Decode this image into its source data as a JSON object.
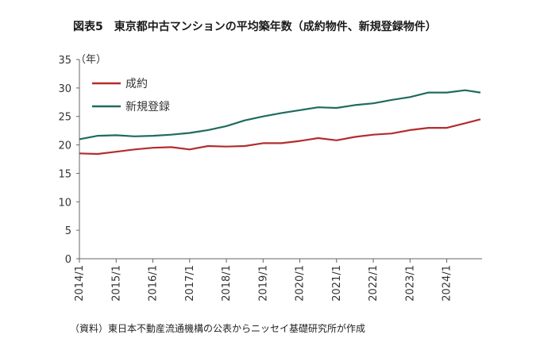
{
  "chart_data": {
    "type": "line",
    "title": "図表5　東京都中古マンションの平均築年数（成約物件、新規登録物件）",
    "ylabel": "（年）",
    "xlabel": "",
    "ylim": [
      0,
      35
    ],
    "y_ticks": [
      "0",
      "5",
      "10",
      "15",
      "20",
      "25",
      "30",
      "35"
    ],
    "x_tick_labels": [
      "2014/1",
      "2015/1",
      "2016/1",
      "2017/1",
      "2018/1",
      "2019/1",
      "2020/1",
      "2021/1",
      "2022/1",
      "2023/1",
      "2024/1"
    ],
    "grid": false,
    "legend_position": "top-left",
    "source": "（資料）東日本不動産流通機構の公表からニッセイ基礎研究所が作成",
    "series": [
      {
        "name": "成約",
        "color": "#b22d2d",
        "points": [
          [
            "2014/1",
            18.5
          ],
          [
            "2014/7",
            18.4
          ],
          [
            "2015/1",
            18.8
          ],
          [
            "2015/7",
            19.2
          ],
          [
            "2016/1",
            19.5
          ],
          [
            "2016/7",
            19.6
          ],
          [
            "2017/1",
            19.2
          ],
          [
            "2017/7",
            19.8
          ],
          [
            "2018/1",
            19.7
          ],
          [
            "2018/7",
            19.8
          ],
          [
            "2019/1",
            20.3
          ],
          [
            "2019/7",
            20.3
          ],
          [
            "2020/1",
            20.7
          ],
          [
            "2020/7",
            21.2
          ],
          [
            "2021/1",
            20.8
          ],
          [
            "2021/7",
            21.4
          ],
          [
            "2022/1",
            21.8
          ],
          [
            "2022/7",
            22.0
          ],
          [
            "2023/1",
            22.6
          ],
          [
            "2023/7",
            23.0
          ],
          [
            "2024/1",
            23.0
          ],
          [
            "2024/7",
            23.8
          ],
          [
            "2024/12",
            24.5
          ]
        ]
      },
      {
        "name": "新規登録",
        "color": "#1f6b5e",
        "points": [
          [
            "2014/1",
            21.0
          ],
          [
            "2014/7",
            21.6
          ],
          [
            "2015/1",
            21.7
          ],
          [
            "2015/7",
            21.5
          ],
          [
            "2016/1",
            21.6
          ],
          [
            "2016/7",
            21.8
          ],
          [
            "2017/1",
            22.1
          ],
          [
            "2017/7",
            22.6
          ],
          [
            "2018/1",
            23.3
          ],
          [
            "2018/7",
            24.3
          ],
          [
            "2019/1",
            25.0
          ],
          [
            "2019/7",
            25.6
          ],
          [
            "2020/1",
            26.1
          ],
          [
            "2020/7",
            26.6
          ],
          [
            "2021/1",
            26.5
          ],
          [
            "2021/7",
            27.0
          ],
          [
            "2022/1",
            27.3
          ],
          [
            "2022/7",
            27.9
          ],
          [
            "2023/1",
            28.4
          ],
          [
            "2023/7",
            29.2
          ],
          [
            "2024/1",
            29.2
          ],
          [
            "2024/7",
            29.6
          ],
          [
            "2024/12",
            29.2
          ]
        ]
      }
    ]
  }
}
